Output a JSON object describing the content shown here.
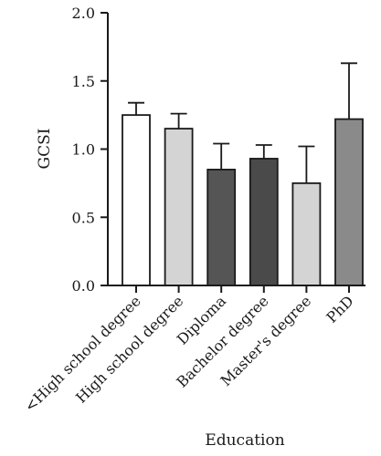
{
  "chart_data": {
    "type": "bar",
    "title": "",
    "xlabel": "Education",
    "ylabel": "GCSI",
    "ylim": [
      0,
      2.0
    ],
    "yticks": [
      "0.0",
      "0.5",
      "1.0",
      "1.5",
      "2.0"
    ],
    "grid": false,
    "categories": [
      "<High school degree",
      "High school degree",
      "Diploma",
      "Bachelor degree",
      "Master's degree",
      "PhD"
    ],
    "values": [
      1.25,
      1.15,
      0.85,
      0.93,
      0.75,
      1.22
    ],
    "error_upper": [
      0.09,
      0.11,
      0.19,
      0.1,
      0.27,
      0.41
    ],
    "bar_colors": [
      "#ffffff",
      "#d4d4d4",
      "#555555",
      "#4a4a4a",
      "#d4d4d4",
      "#8a8a8a"
    ]
  }
}
